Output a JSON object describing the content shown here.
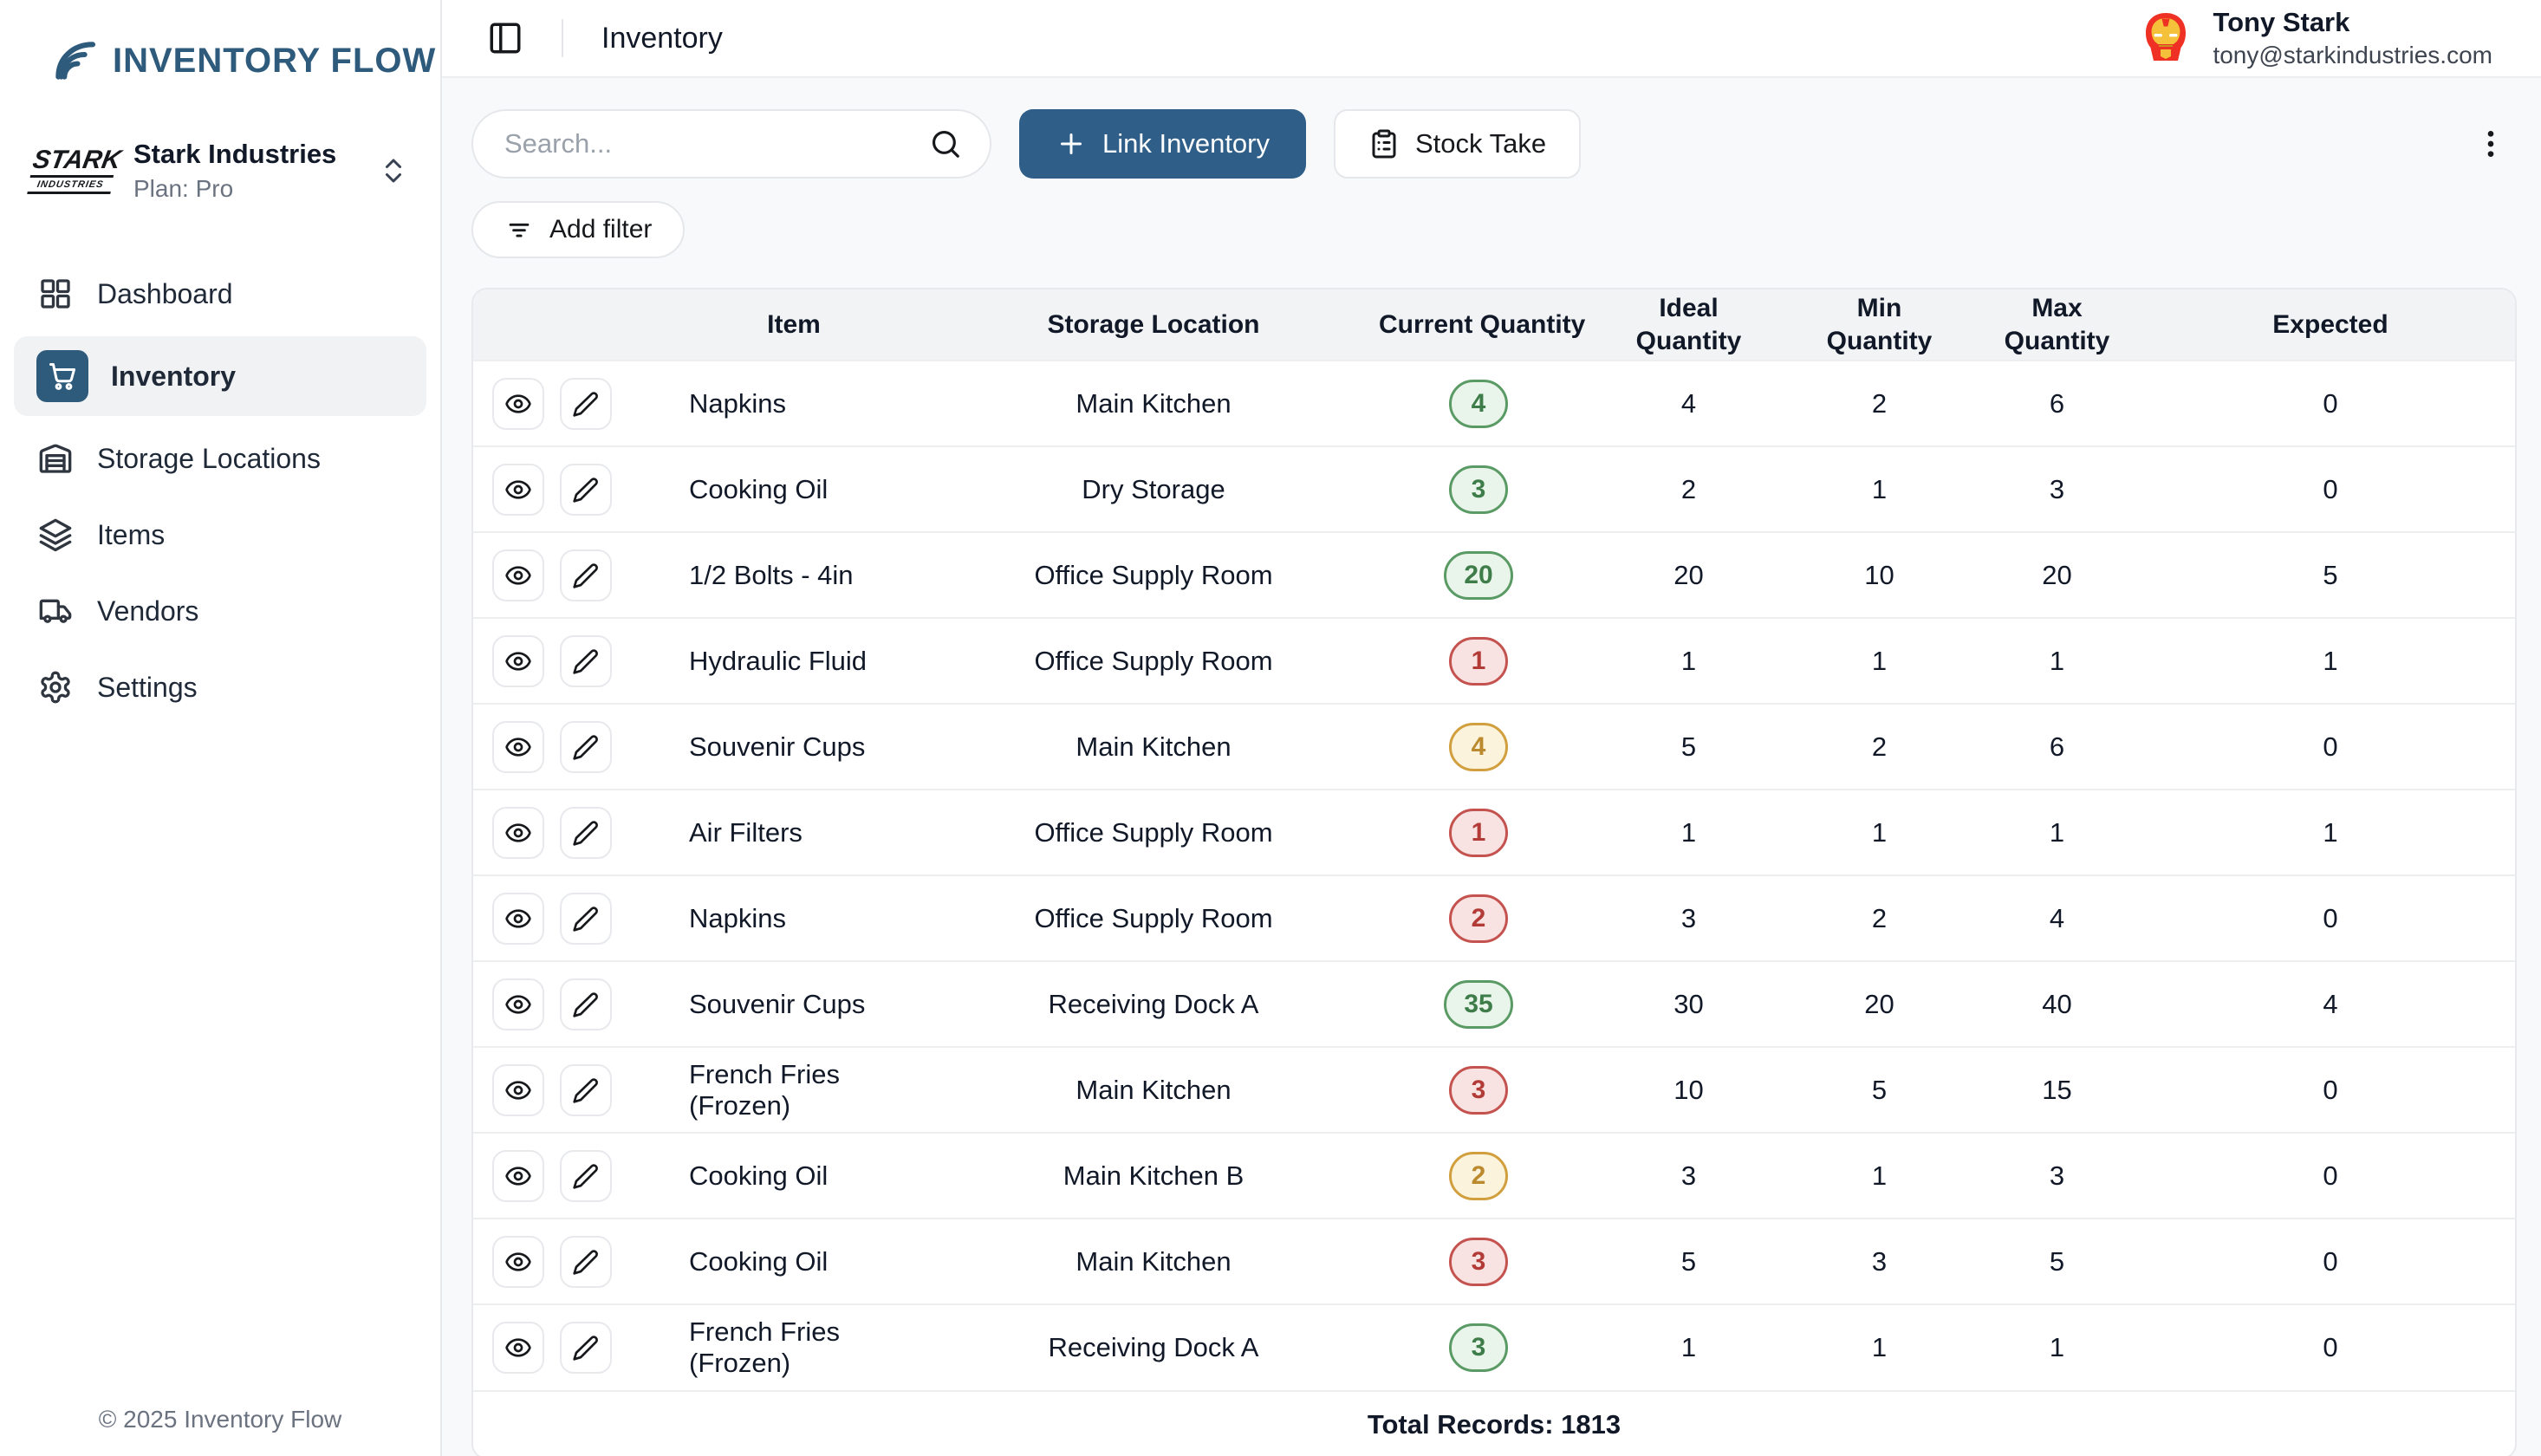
{
  "app": {
    "name": "INVENTORY FLOW",
    "copyright": "© 2025 Inventory Flow",
    "brand_color": "#2e5a7c",
    "primary_button_color": "#2f5f88"
  },
  "sidebar": {
    "org": {
      "name": "Stark Industries",
      "plan": "Plan: Pro",
      "logo_line1": "STARK",
      "logo_line2": "INDUSTRIES"
    },
    "items": [
      {
        "label": "Dashboard",
        "icon": "dashboard-grid-icon",
        "active": false
      },
      {
        "label": "Inventory",
        "icon": "cart-icon",
        "active": true
      },
      {
        "label": "Storage Locations",
        "icon": "warehouse-icon",
        "active": false
      },
      {
        "label": "Items",
        "icon": "layers-icon",
        "active": false
      },
      {
        "label": "Vendors",
        "icon": "truck-icon",
        "active": false
      },
      {
        "label": "Settings",
        "icon": "gear-icon",
        "active": false
      }
    ]
  },
  "topbar": {
    "title": "Inventory",
    "user": {
      "name": "Tony Stark",
      "email": "tony@starkindustries.com"
    }
  },
  "toolbar": {
    "search_placeholder": "Search...",
    "link_inventory_label": "Link Inventory",
    "stock_take_label": "Stock Take",
    "add_filter_label": "Add filter"
  },
  "table": {
    "columns": [
      "Item",
      "Storage Location",
      "Current Quantity",
      "Ideal Quantity",
      "Min Quantity",
      "Max Quantity",
      "Expected"
    ],
    "rows": [
      {
        "item": "Napkins",
        "location": "Main Kitchen",
        "current": "4",
        "status": "green",
        "ideal": "4",
        "min": "2",
        "max": "6",
        "expected": "0"
      },
      {
        "item": "Cooking Oil",
        "location": "Dry Storage",
        "current": "3",
        "status": "green",
        "ideal": "2",
        "min": "1",
        "max": "3",
        "expected": "0"
      },
      {
        "item": "1/2 Bolts - 4in",
        "location": "Office Supply Room",
        "current": "20",
        "status": "green",
        "ideal": "20",
        "min": "10",
        "max": "20",
        "expected": "5"
      },
      {
        "item": "Hydraulic Fluid",
        "location": "Office Supply Room",
        "current": "1",
        "status": "red",
        "ideal": "1",
        "min": "1",
        "max": "1",
        "expected": "1"
      },
      {
        "item": "Souvenir Cups",
        "location": "Main Kitchen",
        "current": "4",
        "status": "amber",
        "ideal": "5",
        "min": "2",
        "max": "6",
        "expected": "0"
      },
      {
        "item": "Air Filters",
        "location": "Office Supply Room",
        "current": "1",
        "status": "red",
        "ideal": "1",
        "min": "1",
        "max": "1",
        "expected": "1"
      },
      {
        "item": "Napkins",
        "location": "Office Supply Room",
        "current": "2",
        "status": "red",
        "ideal": "3",
        "min": "2",
        "max": "4",
        "expected": "0"
      },
      {
        "item": "Souvenir Cups",
        "location": "Receiving Dock A",
        "current": "35",
        "status": "green",
        "ideal": "30",
        "min": "20",
        "max": "40",
        "expected": "4"
      },
      {
        "item": "French Fries (Frozen)",
        "location": "Main Kitchen",
        "current": "3",
        "status": "red",
        "ideal": "10",
        "min": "5",
        "max": "15",
        "expected": "0"
      },
      {
        "item": "Cooking Oil",
        "location": "Main Kitchen B",
        "current": "2",
        "status": "amber",
        "ideal": "3",
        "min": "1",
        "max": "3",
        "expected": "0"
      },
      {
        "item": "Cooking Oil",
        "location": "Main Kitchen",
        "current": "3",
        "status": "red",
        "ideal": "5",
        "min": "3",
        "max": "5",
        "expected": "0"
      },
      {
        "item": "French Fries (Frozen)",
        "location": "Receiving Dock A",
        "current": "3",
        "status": "green",
        "ideal": "1",
        "min": "1",
        "max": "1",
        "expected": "0"
      }
    ],
    "total_label": "Total Records: 1813"
  },
  "status_colors": {
    "green": {
      "border": "#5a9a64",
      "text": "#3e7d4a",
      "bg": "#e9f4ea"
    },
    "red": {
      "border": "#c4524e",
      "text": "#b23b37",
      "bg": "#f8e3e2"
    },
    "amber": {
      "border": "#d19f3d",
      "text": "#bb8a2e",
      "bg": "#fbf3dc"
    }
  }
}
